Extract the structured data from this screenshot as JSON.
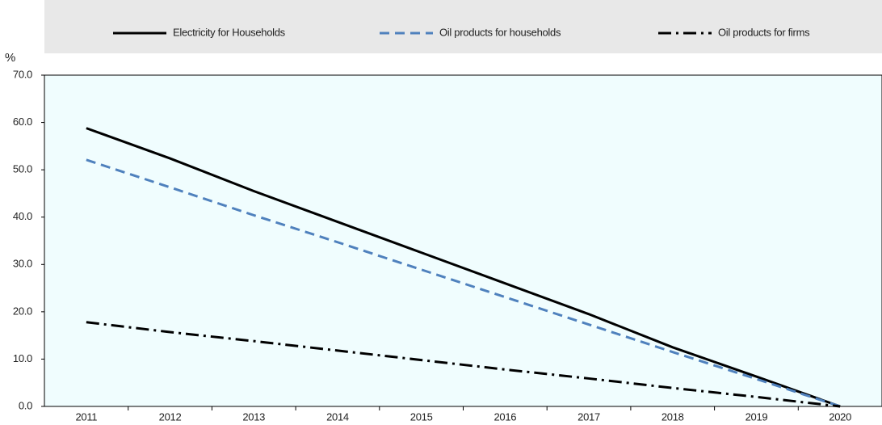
{
  "chart_data": {
    "type": "line",
    "y_label": "%",
    "categories": [
      "2011",
      "2012",
      "2013",
      "2014",
      "2015",
      "2016",
      "2017",
      "2018",
      "2019",
      "2020"
    ],
    "series": [
      {
        "name": "Electricity for Households",
        "color": "#000000",
        "style": "solid",
        "values": [
          58.8,
          52.4,
          45.5,
          39.0,
          32.5,
          26.0,
          19.5,
          12.5,
          6.3,
          0.0
        ]
      },
      {
        "name": "Oil products for households",
        "color": "#4f81bd",
        "style": "dashed",
        "values": [
          52.1,
          46.3,
          40.4,
          34.7,
          28.9,
          23.1,
          17.3,
          11.5,
          5.8,
          0.0
        ]
      },
      {
        "name": "Oil products for firms",
        "color": "#000000",
        "style": "dashdot",
        "values": [
          17.8,
          15.7,
          13.8,
          11.8,
          9.8,
          7.8,
          5.9,
          3.9,
          2.0,
          0.0
        ]
      }
    ],
    "ylim": [
      0,
      70
    ],
    "yticks": [
      {
        "value": 0,
        "label": "0.0"
      },
      {
        "value": 10,
        "label": "10.0"
      },
      {
        "value": 20,
        "label": "20.0"
      },
      {
        "value": 30,
        "label": "30.0"
      },
      {
        "value": 40,
        "label": "40.0"
      },
      {
        "value": 50,
        "label": "50.0"
      },
      {
        "value": 60,
        "label": "60.0"
      },
      {
        "value": 70,
        "label": "70.0"
      }
    ],
    "grid": false,
    "legend": "top"
  }
}
